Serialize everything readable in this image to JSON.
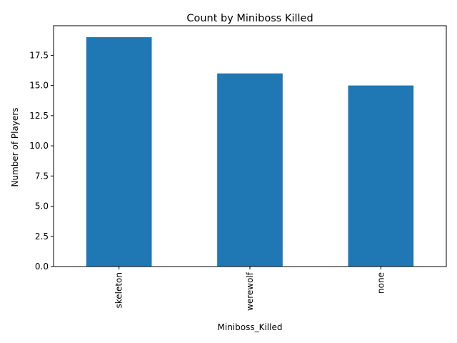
{
  "chart_data": {
    "type": "bar",
    "title": "Count by Miniboss Killed",
    "xlabel": "Miniboss_Killed",
    "ylabel": "Number of Players",
    "categories": [
      "skeleton",
      "werewolf",
      "none"
    ],
    "values": [
      19,
      16,
      15
    ],
    "ylim": [
      0,
      19.95
    ],
    "yticks": [
      "0.0",
      "2.5",
      "5.0",
      "7.5",
      "10.0",
      "12.5",
      "15.0",
      "17.5"
    ],
    "bar_color": "#1f77b4",
    "grid": false,
    "legend": "none"
  }
}
